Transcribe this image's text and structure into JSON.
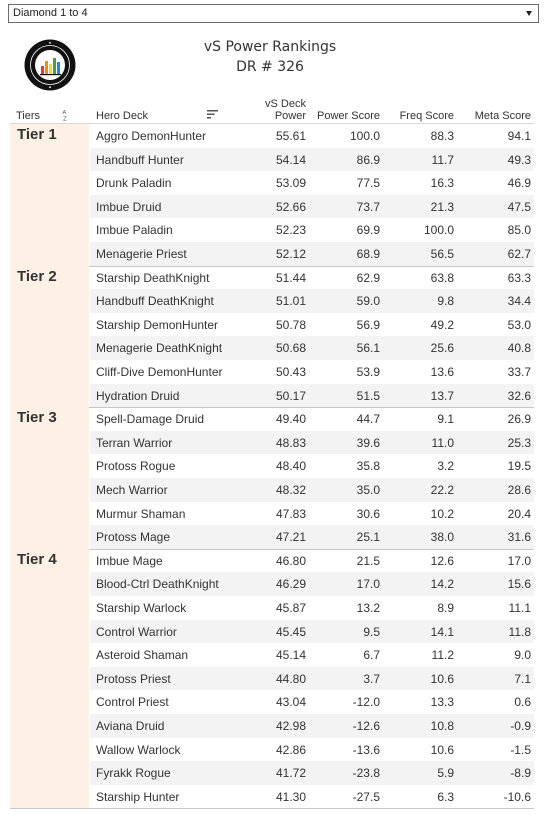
{
  "filter": {
    "selected": "Diamond 1 to 4"
  },
  "header": {
    "title": "vS Power Rankings",
    "subtitle": "DR # 326",
    "logo_icon": "vicious-syndicate-data-reaper-logo"
  },
  "columns": {
    "tiers": "Tiers",
    "hero_deck": "Hero Deck",
    "power_line1": "vS Deck",
    "power_line2": "Power",
    "power_score": "Power Score",
    "freq_score": "Freq Score",
    "meta_score": "Meta Score"
  },
  "colors": {
    "tier_band": "#fcf1e4",
    "row_alt": "#f3f3f3"
  },
  "tiers": [
    {
      "label": "Tier 1",
      "rows": [
        {
          "deck": "Aggro DemonHunter",
          "power": "55.61",
          "power_score": "100.0",
          "freq_score": "88.3",
          "meta_score": "94.1"
        },
        {
          "deck": "Handbuff Hunter",
          "power": "54.14",
          "power_score": "86.9",
          "freq_score": "11.7",
          "meta_score": "49.3"
        },
        {
          "deck": "Drunk Paladin",
          "power": "53.09",
          "power_score": "77.5",
          "freq_score": "16.3",
          "meta_score": "46.9"
        },
        {
          "deck": "Imbue Druid",
          "power": "52.66",
          "power_score": "73.7",
          "freq_score": "21.3",
          "meta_score": "47.5"
        },
        {
          "deck": "Imbue Paladin",
          "power": "52.23",
          "power_score": "69.9",
          "freq_score": "100.0",
          "meta_score": "85.0"
        },
        {
          "deck": "Menagerie Priest",
          "power": "52.12",
          "power_score": "68.9",
          "freq_score": "56.5",
          "meta_score": "62.7"
        }
      ]
    },
    {
      "label": "Tier 2",
      "rows": [
        {
          "deck": "Starship DeathKnight",
          "power": "51.44",
          "power_score": "62.9",
          "freq_score": "63.8",
          "meta_score": "63.3"
        },
        {
          "deck": "Handbuff DeathKnight",
          "power": "51.01",
          "power_score": "59.0",
          "freq_score": "9.8",
          "meta_score": "34.4"
        },
        {
          "deck": "Starship DemonHunter",
          "power": "50.78",
          "power_score": "56.9",
          "freq_score": "49.2",
          "meta_score": "53.0"
        },
        {
          "deck": "Menagerie DeathKnight",
          "power": "50.68",
          "power_score": "56.1",
          "freq_score": "25.6",
          "meta_score": "40.8"
        },
        {
          "deck": "Cliff-Dive DemonHunter",
          "power": "50.43",
          "power_score": "53.9",
          "freq_score": "13.6",
          "meta_score": "33.7"
        },
        {
          "deck": "Hydration Druid",
          "power": "50.17",
          "power_score": "51.5",
          "freq_score": "13.7",
          "meta_score": "32.6"
        }
      ]
    },
    {
      "label": "Tier 3",
      "rows": [
        {
          "deck": "Spell-Damage Druid",
          "power": "49.40",
          "power_score": "44.7",
          "freq_score": "9.1",
          "meta_score": "26.9"
        },
        {
          "deck": "Terran Warrior",
          "power": "48.83",
          "power_score": "39.6",
          "freq_score": "11.0",
          "meta_score": "25.3"
        },
        {
          "deck": "Protoss Rogue",
          "power": "48.40",
          "power_score": "35.8",
          "freq_score": "3.2",
          "meta_score": "19.5"
        },
        {
          "deck": "Mech Warrior",
          "power": "48.32",
          "power_score": "35.0",
          "freq_score": "22.2",
          "meta_score": "28.6"
        },
        {
          "deck": "Murmur Shaman",
          "power": "47.83",
          "power_score": "30.6",
          "freq_score": "10.2",
          "meta_score": "20.4"
        },
        {
          "deck": "Protoss Mage",
          "power": "47.21",
          "power_score": "25.1",
          "freq_score": "38.0",
          "meta_score": "31.6"
        }
      ]
    },
    {
      "label": "Tier 4",
      "rows": [
        {
          "deck": "Imbue Mage",
          "power": "46.80",
          "power_score": "21.5",
          "freq_score": "12.6",
          "meta_score": "17.0"
        },
        {
          "deck": "Blood-Ctrl DeathKnight",
          "power": "46.29",
          "power_score": "17.0",
          "freq_score": "14.2",
          "meta_score": "15.6"
        },
        {
          "deck": "Starship Warlock",
          "power": "45.87",
          "power_score": "13.2",
          "freq_score": "8.9",
          "meta_score": "11.1"
        },
        {
          "deck": "Control Warrior",
          "power": "45.45",
          "power_score": "9.5",
          "freq_score": "14.1",
          "meta_score": "11.8"
        },
        {
          "deck": "Asteroid Shaman",
          "power": "45.14",
          "power_score": "6.7",
          "freq_score": "11.2",
          "meta_score": "9.0"
        },
        {
          "deck": "Protoss Priest",
          "power": "44.80",
          "power_score": "3.7",
          "freq_score": "10.6",
          "meta_score": "7.1"
        },
        {
          "deck": "Control Priest",
          "power": "43.04",
          "power_score": "-12.0",
          "freq_score": "13.3",
          "meta_score": "0.6"
        },
        {
          "deck": "Aviana Druid",
          "power": "42.98",
          "power_score": "-12.6",
          "freq_score": "10.8",
          "meta_score": "-0.9"
        },
        {
          "deck": "Wallow Warlock",
          "power": "42.86",
          "power_score": "-13.6",
          "freq_score": "10.6",
          "meta_score": "-1.5"
        },
        {
          "deck": "Fyrakk Rogue",
          "power": "41.72",
          "power_score": "-23.8",
          "freq_score": "5.9",
          "meta_score": "-8.9"
        },
        {
          "deck": "Starship Hunter",
          "power": "41.30",
          "power_score": "-27.5",
          "freq_score": "6.3",
          "meta_score": "-10.6"
        }
      ]
    }
  ]
}
